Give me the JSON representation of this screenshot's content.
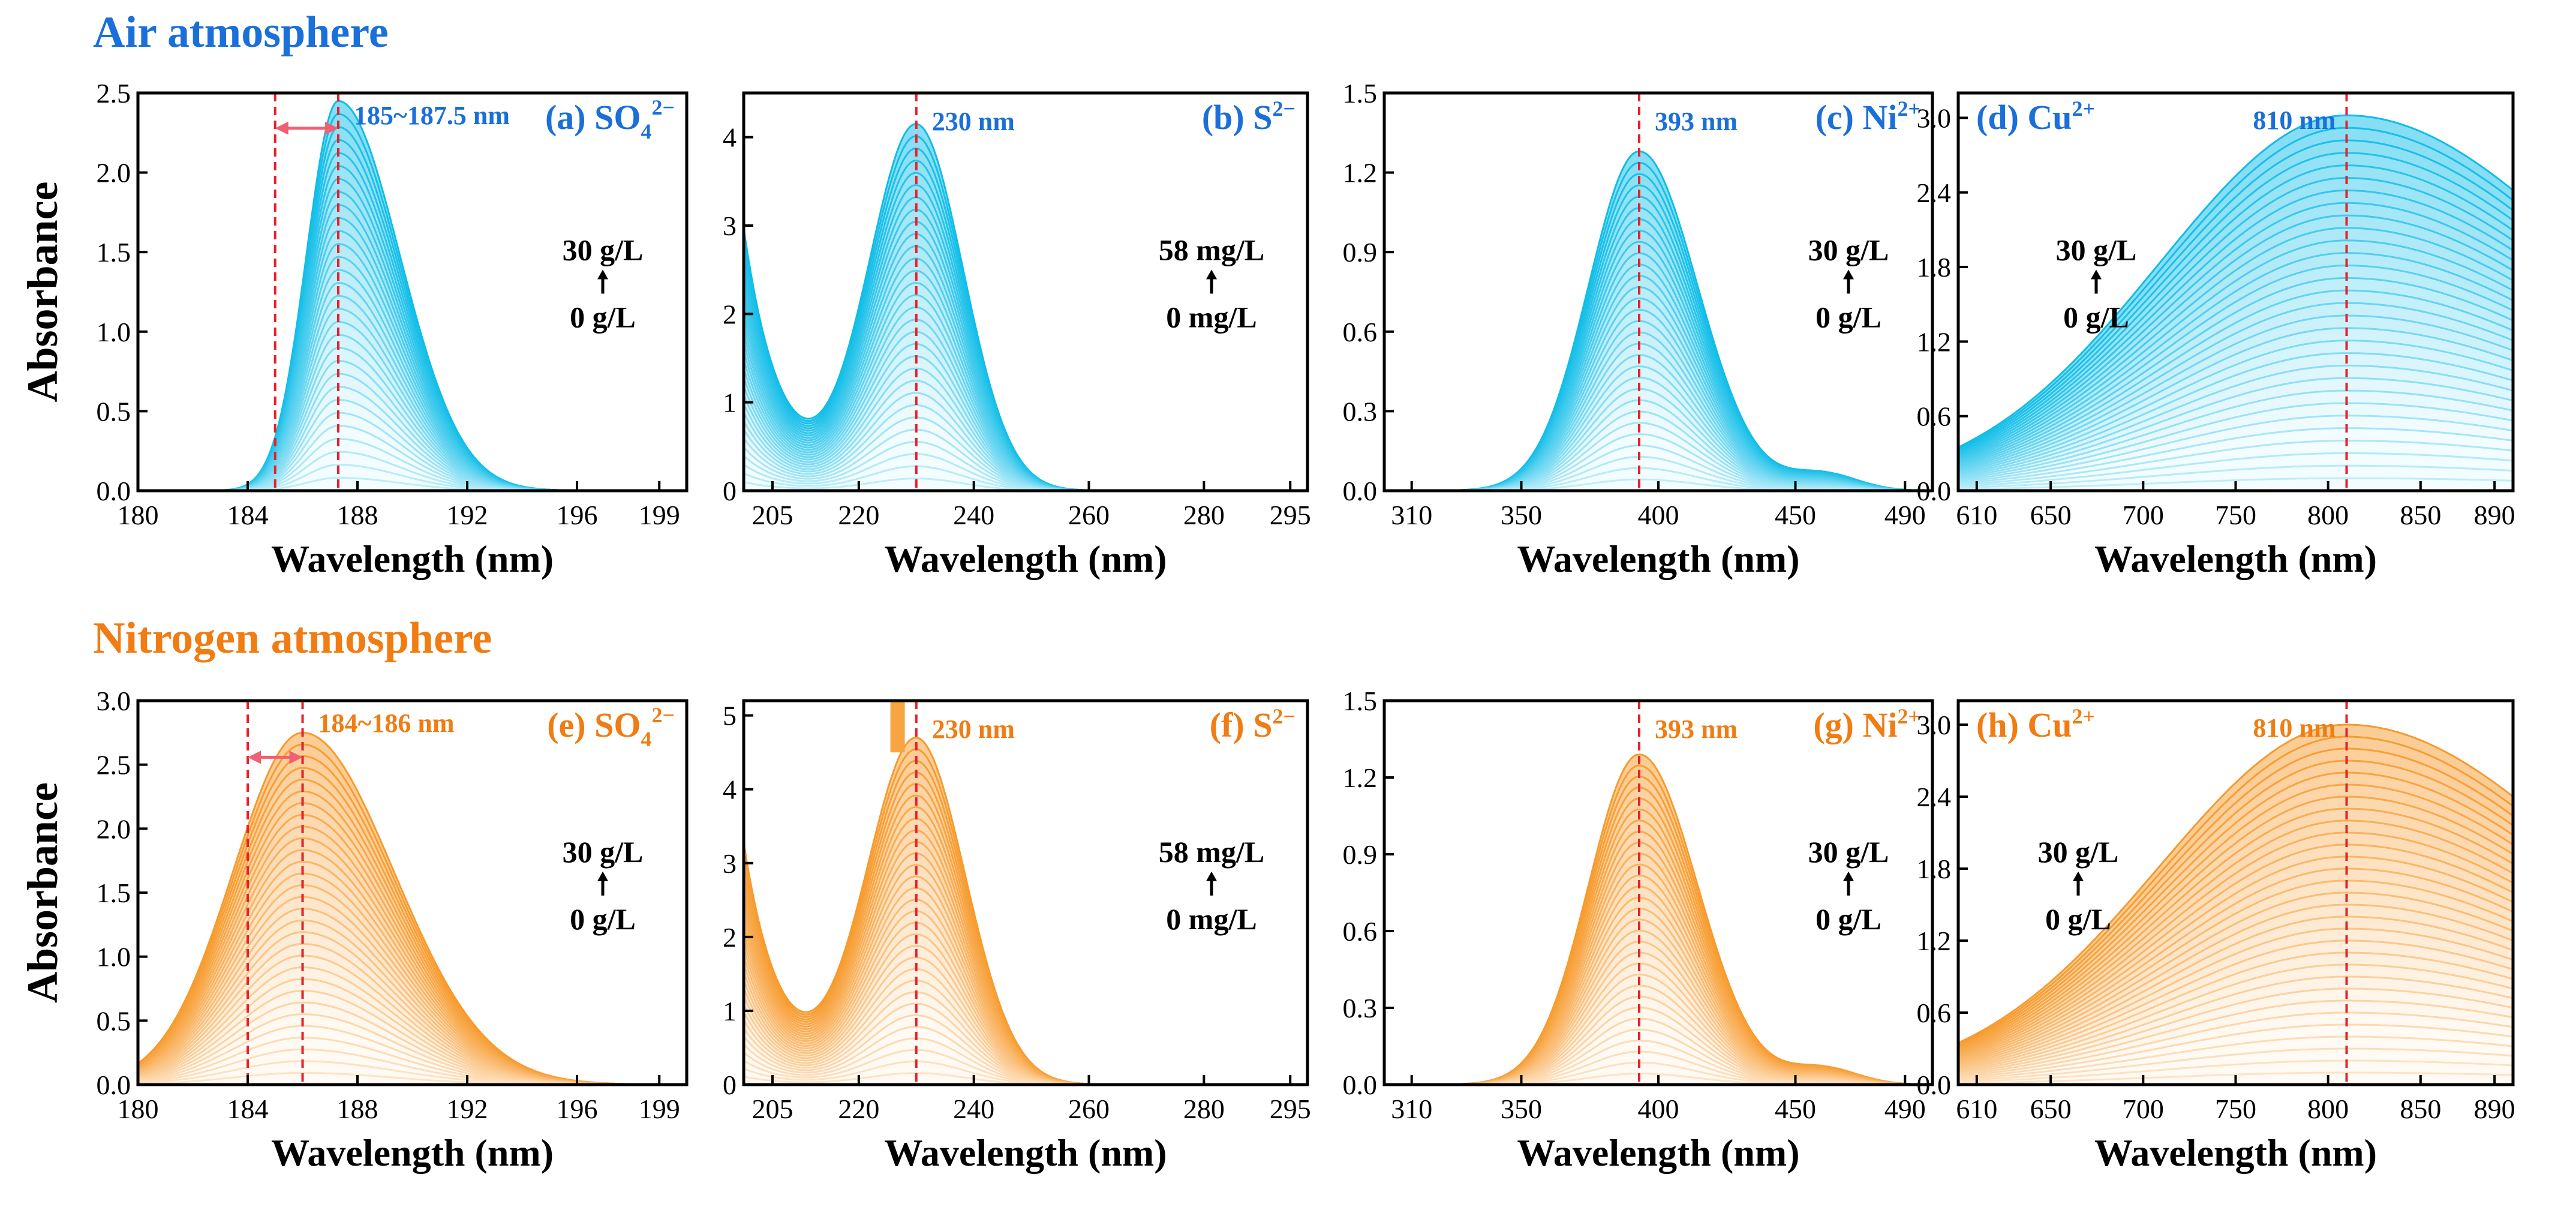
{
  "colors": {
    "air": "#0fbde8",
    "air_text": "#1a6fd9",
    "nitrogen": "#f79a2c",
    "nitrogen_text": "#f07c12",
    "dash": "#e8202a",
    "arrow": "#f06070"
  },
  "rows": [
    {
      "title": "Air atmosphere",
      "theme": "air"
    },
    {
      "title": "Nitrogen atmosphere",
      "theme": "nitrogen"
    }
  ],
  "ylabel": "Absorbance",
  "chart_data": [
    {
      "id": "a",
      "type": "area",
      "title": "(a) SO",
      "species_main": "SO",
      "species_sub": "4",
      "species_sup": "2−",
      "label_prefix": "(a) ",
      "theme": "air",
      "xlabel": "Wavelength (nm)",
      "ylabel": "Absorbance",
      "xlim": [
        180,
        200
      ],
      "ylim": [
        0,
        2.5
      ],
      "xticks": [
        180,
        184,
        188,
        192,
        196,
        199
      ],
      "yticks": [
        "0.0",
        "0.5",
        "1.0",
        "1.5",
        "2.0",
        "2.5"
      ],
      "peak_x": 187.3,
      "peak_y": 2.45,
      "dash_x": [
        185,
        187.3
      ],
      "peak_label": "185~187.5 nm",
      "conc_top": "30 g/L",
      "conc_bottom": "0 g/L",
      "n_curves": 30,
      "shape": "so4_air"
    },
    {
      "id": "b",
      "type": "area",
      "title": "(b) S",
      "species_main": "S",
      "species_sub": "",
      "species_sup": "2−",
      "label_prefix": "(b) ",
      "theme": "air",
      "xlabel": "Wavelength (nm)",
      "ylabel": "",
      "xlim": [
        200,
        298
      ],
      "ylim": [
        0,
        4.5
      ],
      "xticks": [
        205,
        220,
        240,
        260,
        280,
        295
      ],
      "yticks": [
        "0",
        "1",
        "2",
        "3",
        "4"
      ],
      "peak_x": 230,
      "peak_y": 4.15,
      "dash_x": [
        230
      ],
      "peak_label": "230 nm",
      "conc_top": "58 mg/L",
      "conc_bottom": "0 mg/L",
      "n_curves": 30,
      "shape": "s2"
    },
    {
      "id": "c",
      "type": "area",
      "title": "(c) Ni",
      "species_main": "Ni",
      "species_sub": "",
      "species_sup": "2+",
      "label_prefix": "(c) ",
      "theme": "air",
      "xlabel": "Wavelength (nm)",
      "ylabel": "",
      "xlim": [
        300,
        500
      ],
      "ylim": [
        0,
        1.5
      ],
      "xticks": [
        310,
        350,
        400,
        450,
        490
      ],
      "yticks": [
        "0.0",
        "0.3",
        "0.6",
        "0.9",
        "1.2",
        "1.5"
      ],
      "peak_x": 393,
      "peak_y": 1.28,
      "dash_x": [
        393
      ],
      "peak_label": "393 nm",
      "conc_top": "30 g/L",
      "conc_bottom": "0 g/L",
      "n_curves": 30,
      "shape": "ni"
    },
    {
      "id": "d",
      "type": "area",
      "title": "(d) Cu",
      "species_main": "Cu",
      "species_sub": "",
      "species_sup": "2+",
      "label_prefix": "(d) ",
      "theme": "air",
      "xlabel": "Wavelength (nm)",
      "ylabel": "",
      "xlim": [
        600,
        900
      ],
      "ylim": [
        0,
        3.2
      ],
      "xticks": [
        610,
        650,
        700,
        750,
        800,
        850,
        890
      ],
      "yticks": [
        "0.0",
        "0.6",
        "1.2",
        "1.8",
        "2.4",
        "3.0"
      ],
      "peak_x": 810,
      "peak_y": 3.02,
      "dash_x": [
        810
      ],
      "peak_label": "810 nm",
      "conc_top": "30 g/L",
      "conc_bottom": "0 g/L",
      "n_curves": 30,
      "shape": "cu"
    },
    {
      "id": "e",
      "type": "area",
      "title": "(e) SO",
      "species_main": "SO",
      "species_sub": "4",
      "species_sup": "2−",
      "label_prefix": "(e) ",
      "theme": "nitrogen",
      "xlabel": "Wavelength (nm)",
      "ylabel": "Absorbance",
      "xlim": [
        180,
        200
      ],
      "ylim": [
        0,
        3.0
      ],
      "xticks": [
        180,
        184,
        188,
        192,
        196,
        199
      ],
      "yticks": [
        "0.0",
        "0.5",
        "1.0",
        "1.5",
        "2.0",
        "2.5",
        "3.0"
      ],
      "peak_x": 186,
      "peak_y": 2.75,
      "dash_x": [
        184,
        186
      ],
      "peak_label": "184~186 nm",
      "conc_top": "30 g/L",
      "conc_bottom": "0 g/L",
      "n_curves": 30,
      "shape": "so4_n2"
    },
    {
      "id": "f",
      "type": "area",
      "title": "(f) S",
      "species_main": "S",
      "species_sub": "",
      "species_sup": "2−",
      "label_prefix": "(f) ",
      "theme": "nitrogen",
      "xlabel": "Wavelength (nm)",
      "ylabel": "",
      "xlim": [
        200,
        298
      ],
      "ylim": [
        0,
        5.2
      ],
      "xticks": [
        205,
        220,
        240,
        260,
        280,
        295
      ],
      "yticks": [
        "0",
        "1",
        "2",
        "3",
        "4",
        "5"
      ],
      "peak_x": 230,
      "peak_y": 4.7,
      "dash_x": [
        230
      ],
      "peak_label": "230 nm",
      "conc_top": "58 mg/L",
      "conc_bottom": "0 mg/L",
      "n_curves": 30,
      "shape": "s2_n2"
    },
    {
      "id": "g",
      "type": "area",
      "title": "(g) Ni",
      "species_main": "Ni",
      "species_sub": "",
      "species_sup": "2+",
      "label_prefix": "(g) ",
      "theme": "nitrogen",
      "xlabel": "Wavelength (nm)",
      "ylabel": "",
      "xlim": [
        300,
        500
      ],
      "ylim": [
        0,
        1.5
      ],
      "xticks": [
        310,
        350,
        400,
        450,
        490
      ],
      "yticks": [
        "0.0",
        "0.3",
        "0.6",
        "0.9",
        "1.2",
        "1.5"
      ],
      "peak_x": 393,
      "peak_y": 1.29,
      "dash_x": [
        393
      ],
      "peak_label": "393 nm",
      "conc_top": "30 g/L",
      "conc_bottom": "0 g/L",
      "n_curves": 30,
      "shape": "ni"
    },
    {
      "id": "h",
      "type": "area",
      "title": "(h) Cu",
      "species_main": "Cu",
      "species_sub": "",
      "species_sup": "2+",
      "label_prefix": "(h) ",
      "theme": "nitrogen",
      "xlabel": "Wavelength (nm)",
      "ylabel": "",
      "xlim": [
        600,
        900
      ],
      "ylim": [
        0,
        3.2
      ],
      "xticks": [
        610,
        650,
        700,
        750,
        800,
        850,
        890
      ],
      "yticks": [
        "0.0",
        "0.6",
        "1.2",
        "1.8",
        "2.4",
        "3.0"
      ],
      "peak_x": 810,
      "peak_y": 3.0,
      "dash_x": [
        810
      ],
      "peak_label": "810 nm",
      "conc_top": "30 g/L",
      "conc_bottom": "0 g/L",
      "n_curves": 30,
      "shape": "cu"
    }
  ]
}
